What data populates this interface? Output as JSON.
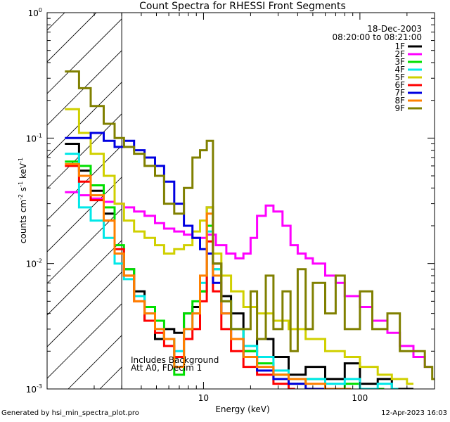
{
  "chart_data": {
    "type": "line",
    "title": "Count Spectra for RHESSI Front Segments",
    "xlabel": "Energy (keV)",
    "ylabel_parts": [
      "counts cm",
      "-2",
      " s",
      "-1",
      " keV",
      "-1"
    ],
    "x_scale": "log",
    "y_scale": "log",
    "xlim": [
      1,
      300
    ],
    "ylim": [
      0.001,
      1
    ],
    "x_ticks": [
      {
        "v": 10,
        "label": "10"
      },
      {
        "v": 100,
        "label": "100"
      }
    ],
    "y_ticks": [
      {
        "v": 0.001,
        "base": "10",
        "exp": "-3"
      },
      {
        "v": 0.01,
        "base": "10",
        "exp": "-2"
      },
      {
        "v": 0.1,
        "base": "10",
        "exp": "-1"
      },
      {
        "v": 1,
        "base": "10",
        "exp": "0"
      }
    ],
    "hatched_region_max_keV": 3,
    "header_text": [
      "18-Dec-2003",
      "08:20:00 to 08:21:00"
    ],
    "annotation": [
      "Includes Background",
      "Att A0, FDecim 1"
    ],
    "series": [
      {
        "name": "1F",
        "color": "#000000",
        "x": [
          1.3,
          1.6,
          1.9,
          2.3,
          2.7,
          3.1,
          3.6,
          4.2,
          4.9,
          5.6,
          6.5,
          7.5,
          8.5,
          9.5,
          10.5,
          11.5,
          13,
          15,
          18,
          22,
          28,
          35,
          45,
          60,
          80,
          100,
          130,
          160,
          200
        ],
        "y": [
          0.09,
          0.055,
          0.038,
          0.025,
          0.012,
          0.009,
          0.006,
          0.0035,
          0.0025,
          0.003,
          0.0028,
          0.004,
          0.0045,
          0.006,
          0.028,
          0.01,
          0.0055,
          0.004,
          0.002,
          0.0025,
          0.0018,
          0.0013,
          0.0015,
          0.0012,
          0.0016,
          0.0011,
          0.0012,
          0.001,
          0.001
        ]
      },
      {
        "name": "2F",
        "color": "#ff00ff",
        "x": [
          1.3,
          1.6,
          1.9,
          2.3,
          2.7,
          3.1,
          3.6,
          4.2,
          4.9,
          5.6,
          6.5,
          7.5,
          8.5,
          9.5,
          10.5,
          12,
          14,
          16,
          18,
          20,
          22,
          25,
          28,
          32,
          36,
          40,
          45,
          50,
          60,
          70,
          80,
          100,
          120,
          150,
          180,
          220,
          260
        ],
        "y": [
          0.037,
          0.035,
          0.033,
          0.031,
          0.03,
          0.028,
          0.026,
          0.024,
          0.021,
          0.019,
          0.018,
          0.017,
          0.016,
          0.016,
          0.017,
          0.014,
          0.012,
          0.011,
          0.012,
          0.016,
          0.024,
          0.029,
          0.026,
          0.02,
          0.014,
          0.012,
          0.011,
          0.01,
          0.008,
          0.007,
          0.0055,
          0.0045,
          0.0035,
          0.0028,
          0.0022,
          0.0018,
          0.0015
        ]
      },
      {
        "name": "3F",
        "color": "#00e000",
        "x": [
          1.3,
          1.6,
          1.9,
          2.3,
          2.7,
          3.1,
          3.6,
          4.2,
          4.9,
          5.6,
          6.5,
          7.5,
          8.5,
          9.5,
          10.5,
          11.5,
          13,
          15,
          18,
          22,
          28,
          35,
          45,
          60,
          80,
          100,
          130
        ],
        "y": [
          0.065,
          0.06,
          0.042,
          0.028,
          0.014,
          0.009,
          0.0055,
          0.0045,
          0.0035,
          0.0025,
          0.0013,
          0.004,
          0.005,
          0.006,
          0.02,
          0.009,
          0.005,
          0.003,
          0.002,
          0.0016,
          0.0013,
          0.0011,
          0.0012,
          0.001,
          0.0011,
          0.001,
          0.001
        ]
      },
      {
        "name": "4F",
        "color": "#00e8e8",
        "x": [
          1.3,
          1.6,
          1.9,
          2.3,
          2.7,
          3.1,
          3.6,
          4.2,
          4.9,
          5.6,
          6.5,
          7.5,
          8.5,
          9.5,
          10.5,
          11.5,
          13,
          15,
          18,
          22,
          28,
          35,
          45,
          60,
          80,
          100,
          130,
          160
        ],
        "y": [
          0.075,
          0.028,
          0.022,
          0.016,
          0.01,
          0.0075,
          0.0055,
          0.004,
          0.003,
          0.0025,
          0.002,
          0.003,
          0.004,
          0.007,
          0.018,
          0.009,
          0.005,
          0.003,
          0.0022,
          0.0018,
          0.0014,
          0.0012,
          0.0012,
          0.0011,
          0.0012,
          0.001,
          0.0011,
          0.001
        ]
      },
      {
        "name": "5F",
        "color": "#d0d000",
        "x": [
          1.3,
          1.6,
          1.9,
          2.3,
          2.7,
          3.1,
          3.6,
          4.2,
          4.9,
          5.6,
          6.5,
          7.5,
          8.5,
          9.5,
          10.5,
          11.5,
          13,
          15,
          18,
          22,
          28,
          35,
          45,
          60,
          80,
          100,
          130,
          160,
          200
        ],
        "y": [
          0.17,
          0.11,
          0.075,
          0.05,
          0.03,
          0.022,
          0.018,
          0.016,
          0.014,
          0.012,
          0.013,
          0.014,
          0.018,
          0.022,
          0.028,
          0.012,
          0.008,
          0.006,
          0.0045,
          0.004,
          0.0035,
          0.003,
          0.0025,
          0.002,
          0.0018,
          0.0015,
          0.0013,
          0.0012,
          0.0011
        ]
      },
      {
        "name": "6F",
        "color": "#ff0000",
        "x": [
          1.3,
          1.6,
          1.9,
          2.3,
          2.7,
          3.1,
          3.6,
          4.2,
          4.9,
          5.6,
          6.5,
          7.5,
          8.5,
          9.5,
          10.5,
          11.5,
          13,
          15,
          18,
          22,
          28,
          35
        ],
        "y": [
          0.06,
          0.045,
          0.032,
          0.022,
          0.013,
          0.008,
          0.005,
          0.0035,
          0.0028,
          0.0022,
          0.0018,
          0.0025,
          0.003,
          0.005,
          0.015,
          0.006,
          0.003,
          0.002,
          0.0015,
          0.0013,
          0.0011,
          0.001
        ]
      },
      {
        "name": "7F",
        "color": "#0000e0",
        "x": [
          1.3,
          1.6,
          1.9,
          2.3,
          2.7,
          3.1,
          3.6,
          4.2,
          4.9,
          5.6,
          6.5,
          7.5,
          8.5,
          9.5,
          10.5,
          11.5,
          13,
          15,
          18,
          22,
          28,
          35,
          45,
          60
        ],
        "y": [
          0.1,
          0.1,
          0.11,
          0.095,
          0.085,
          0.095,
          0.08,
          0.07,
          0.06,
          0.045,
          0.03,
          0.02,
          0.016,
          0.013,
          0.012,
          0.007,
          0.004,
          0.0025,
          0.0018,
          0.0014,
          0.0012,
          0.0011,
          0.001,
          0.001
        ]
      },
      {
        "name": "8F",
        "color": "#ff8000",
        "x": [
          1.3,
          1.6,
          1.9,
          2.3,
          2.7,
          3.1,
          3.6,
          4.2,
          4.9,
          5.6,
          6.5,
          7.5,
          8.5,
          9.5,
          10.5,
          11.5,
          13,
          15,
          18,
          22,
          28,
          35,
          45,
          60,
          80
        ],
        "y": [
          0.062,
          0.05,
          0.035,
          0.022,
          0.012,
          0.008,
          0.005,
          0.004,
          0.003,
          0.0025,
          0.0015,
          0.003,
          0.004,
          0.008,
          0.025,
          0.008,
          0.004,
          0.0025,
          0.0018,
          0.0015,
          0.0013,
          0.0012,
          0.0011,
          0.001,
          0.001
        ]
      },
      {
        "name": "9F",
        "color": "#808000",
        "x": [
          1.3,
          1.6,
          1.9,
          2.3,
          2.7,
          3.1,
          3.6,
          4.2,
          4.9,
          5.6,
          6.5,
          7.5,
          8.5,
          9.5,
          10.5,
          11.5,
          13,
          15,
          18,
          20,
          22,
          25,
          28,
          32,
          36,
          40,
          45,
          50,
          60,
          70,
          80,
          100,
          120,
          150,
          180,
          220,
          260,
          290
        ],
        "y": [
          0.34,
          0.25,
          0.18,
          0.13,
          0.1,
          0.085,
          0.075,
          0.06,
          0.05,
          0.03,
          0.025,
          0.04,
          0.07,
          0.08,
          0.095,
          0.01,
          0.005,
          0.003,
          0.003,
          0.006,
          0.0025,
          0.008,
          0.003,
          0.006,
          0.002,
          0.009,
          0.003,
          0.007,
          0.004,
          0.008,
          0.003,
          0.006,
          0.003,
          0.004,
          0.002,
          0.002,
          0.0015,
          0.0012
        ]
      }
    ]
  },
  "footer": {
    "left": "Generated by hsi_min_spectra_plot.pro",
    "right": "12-Apr-2023 16:03"
  }
}
